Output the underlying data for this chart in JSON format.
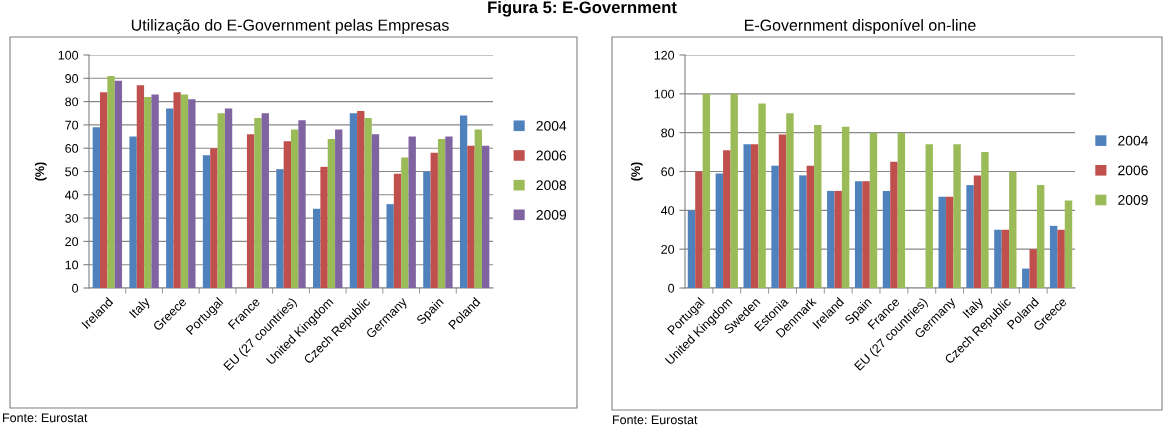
{
  "chart_data": [
    {
      "type": "bar",
      "title": "Figura 5: E-Government",
      "subtitle": "Utilização do E-Government pelas Empresas",
      "ylabel": "(%)",
      "categories": [
        "Ireland",
        "Italy",
        "Greece",
        "Portugal",
        "France",
        "EU (27 countries)",
        "United Kingdom",
        "Czech Republic",
        "Germany",
        "Spain",
        "Poland"
      ],
      "series": [
        {
          "name": "2004",
          "color": "#4f81bd",
          "values": [
            69,
            65,
            77,
            57,
            null,
            51,
            34,
            75,
            36,
            50,
            74
          ]
        },
        {
          "name": "2006",
          "color": "#c0504d",
          "values": [
            84,
            87,
            84,
            60,
            66,
            63,
            52,
            76,
            49,
            58,
            61
          ]
        },
        {
          "name": "2008",
          "color": "#9bbb59",
          "values": [
            91,
            82,
            83,
            75,
            73,
            68,
            64,
            73,
            56,
            64,
            68
          ]
        },
        {
          "name": "2009",
          "color": "#8064a2",
          "values": [
            89,
            83,
            81,
            77,
            75,
            72,
            68,
            66,
            65,
            65,
            61
          ]
        }
      ],
      "ylim": [
        0,
        100
      ],
      "yticks": [
        0,
        10,
        20,
        30,
        40,
        50,
        60,
        70,
        80,
        90,
        100
      ],
      "grid": "y",
      "legend": "right",
      "annotations": [
        "Fonte: Eurostat"
      ]
    },
    {
      "type": "bar",
      "subtitle": "E-Government disponível on-line",
      "ylabel": "(%)",
      "categories": [
        "Portugal",
        "United Kingdom",
        "Sweden",
        "Estonia",
        "Denmark",
        "Ireland",
        "Spain",
        "France",
        "EU (27 countries)",
        "Germany",
        "Italy",
        "Czech Republic",
        "Poland",
        "Greece"
      ],
      "series": [
        {
          "name": "2004",
          "color": "#4f81bd",
          "values": [
            40,
            59,
            74,
            63,
            58,
            50,
            55,
            50,
            null,
            47,
            53,
            30,
            10,
            32
          ]
        },
        {
          "name": "2006",
          "color": "#c0504d",
          "values": [
            60,
            71,
            74,
            79,
            63,
            50,
            55,
            65,
            null,
            47,
            58,
            30,
            20,
            30
          ]
        },
        {
          "name": "2009",
          "color": "#9bbb59",
          "values": [
            100,
            100,
            95,
            90,
            84,
            83,
            80,
            80,
            74,
            74,
            70,
            60,
            53,
            45
          ]
        }
      ],
      "ylim": [
        0,
        120
      ],
      "yticks": [
        0,
        20,
        40,
        60,
        80,
        100,
        120
      ],
      "grid": "y",
      "legend": "right",
      "annotations": [
        "Fonte: Eurostat"
      ]
    }
  ]
}
